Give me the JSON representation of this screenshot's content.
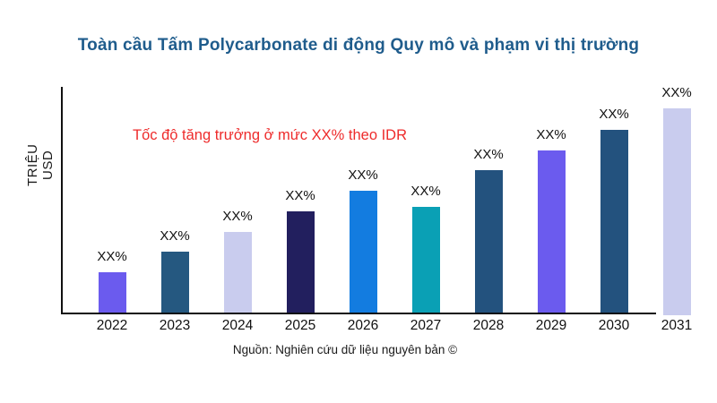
{
  "page": {
    "title": "Toàn cầu Tấm Polycarbonate di động Quy mô và phạm vi thị trường",
    "title_color": "#1F5C8C",
    "annotation": "Tốc độ tăng trưởng ở mức XX% theo IDR",
    "annotation_color": "#EE2B2B",
    "y_axis_label": "TRIỆU USD",
    "source": "Nguồn: Nghiên cứu dữ liệu nguyên bản ©"
  },
  "chart_data": {
    "type": "bar",
    "title": "Toàn cầu Tấm Polycarbonate di động Quy mô và phạm vi thị trường",
    "xlabel": "",
    "ylabel": "TRIỆU USD",
    "categories": [
      "2022",
      "2023",
      "2024",
      "2025",
      "2026",
      "2027",
      "2028",
      "2029",
      "2030",
      "2031"
    ],
    "bar_value_labels": [
      "XX%",
      "XX%",
      "XX%",
      "XX%",
      "XX%",
      "XX%",
      "XX%",
      "XX%",
      "XX%",
      "XX%"
    ],
    "values_relative": [
      45,
      68,
      90,
      113,
      136,
      118,
      159,
      181,
      204,
      228
    ],
    "values_note": "numeric values not printed on chart; every bar is labeled XX%; values_relative are bar heights in pixels",
    "bar_colors": [
      "#6B5BEE",
      "#255880",
      "#C9CCEE",
      "#221F5E",
      "#137CE0",
      "#0AA0B5",
      "#23527E",
      "#6B5BEE",
      "#23527E",
      "#C9CCEE"
    ],
    "axis_color": "#111111",
    "grid": false,
    "legend": false,
    "annotation": "Tốc độ tăng trưởng ở mức XX% theo IDR",
    "source": "Nguồn: Nghiên cứu dữ liệu nguyên bản ©"
  }
}
